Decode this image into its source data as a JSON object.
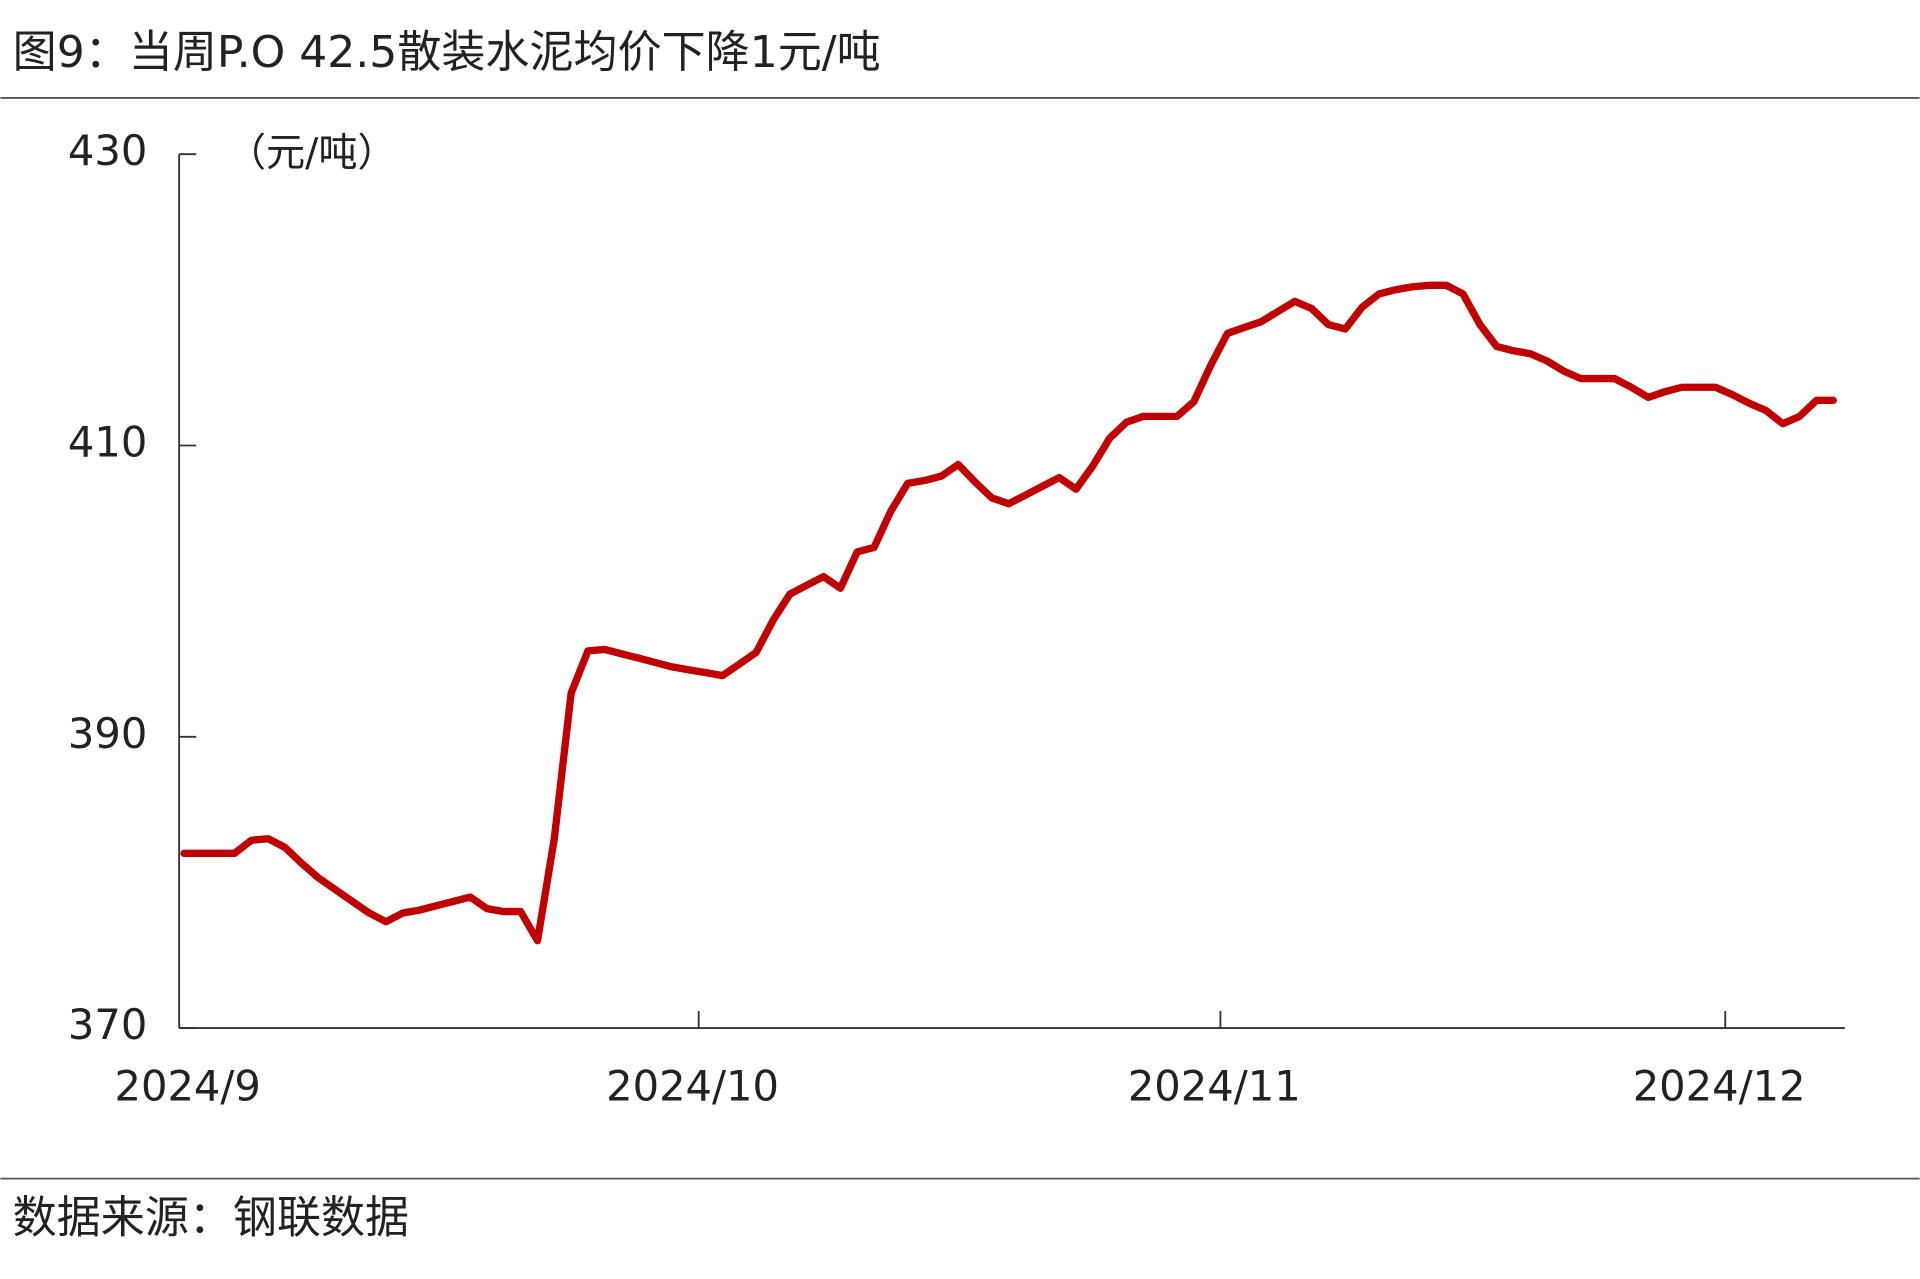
{
  "title": "图9：当周P.O 42.5散装水泥均价下降1元/吨",
  "source": "数据来源：钢联数据",
  "chart_data": {
    "type": "line",
    "unit_label": "（元/吨）",
    "categories": [
      "2024/9",
      null,
      null,
      null,
      null,
      null,
      null,
      null,
      null,
      null,
      null,
      null,
      null,
      null,
      null,
      null,
      null,
      null,
      null,
      null,
      null,
      null,
      null,
      null,
      null,
      null,
      null,
      null,
      null,
      null,
      "2024/10",
      null,
      null,
      null,
      null,
      null,
      null,
      null,
      null,
      null,
      null,
      null,
      null,
      null,
      null,
      null,
      null,
      null,
      null,
      null,
      null,
      null,
      null,
      null,
      null,
      null,
      null,
      null,
      null,
      null,
      null,
      "2024/11",
      null,
      null,
      null,
      null,
      null,
      null,
      null,
      null,
      null,
      null,
      null,
      null,
      null,
      null,
      null,
      null,
      null,
      null,
      null,
      null,
      null,
      null,
      null,
      null,
      null,
      null,
      null,
      null,
      null,
      "2024/12",
      null,
      null,
      null,
      null,
      null,
      null,
      null
    ],
    "series": [
      {
        "name": "P.O 42.5散装水泥均价",
        "color": "#c00000",
        "values": [
          382,
          382,
          382,
          382,
          382.9,
          383,
          382.4,
          381.3,
          380.3,
          379.5,
          378.7,
          377.9,
          377.3,
          377.9,
          378.1,
          378.4,
          378.7,
          379,
          378.2,
          378,
          378,
          376,
          383,
          393,
          395.9,
          396,
          395.7,
          395.4,
          395.1,
          394.8,
          394.6,
          394.4,
          394.2,
          395,
          395.8,
          398,
          399.8,
          400.4,
          401,
          400.2,
          402.7,
          403,
          405.5,
          407.4,
          407.6,
          407.9,
          408.7,
          407.5,
          406.4,
          406,
          406.6,
          407.2,
          407.8,
          407,
          408.6,
          410.5,
          411.6,
          412,
          412,
          412,
          413,
          415.5,
          417.7,
          418.1,
          418.5,
          419.2,
          419.9,
          419.4,
          418.3,
          418,
          419.5,
          420.4,
          420.7,
          420.9,
          421,
          421,
          420.4,
          418.3,
          416.8,
          416.5,
          416.3,
          415.8,
          415.1,
          414.6,
          414.6,
          414.6,
          414,
          413.3,
          413.7,
          414,
          414,
          414,
          413.5,
          412.9,
          412.4,
          411.5,
          412,
          413.1,
          413.1
        ]
      }
    ],
    "ylim": [
      370,
      430
    ],
    "yticks": [
      370,
      390,
      410,
      430
    ]
  }
}
